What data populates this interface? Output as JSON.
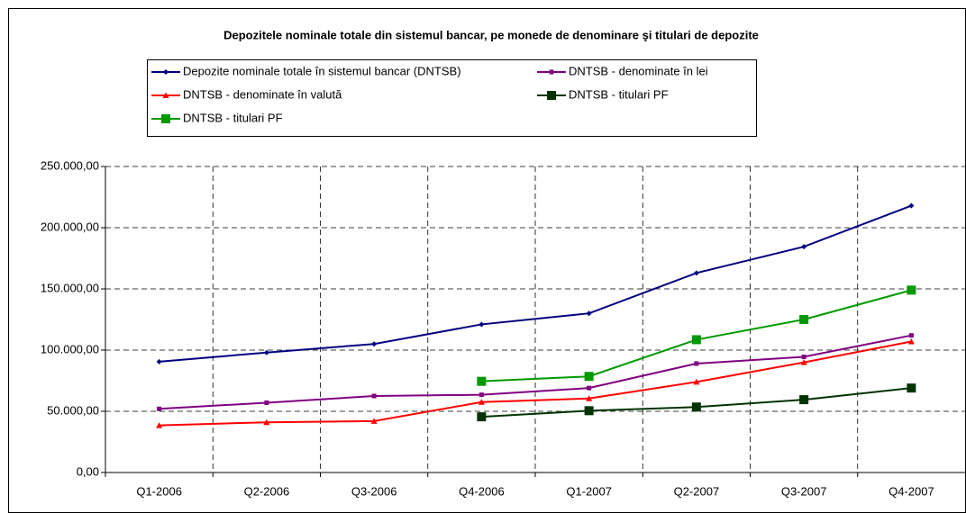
{
  "chart_data": {
    "type": "line",
    "title": "Depozitele nominale totale din sistemul bancar, pe monede de denominare şi titulari de depozite",
    "categories": [
      "Q1-2006",
      "Q2-2006",
      "Q3-2006",
      "Q4-2006",
      "Q1-2007",
      "Q2-2007",
      "Q3-2007",
      "Q4-2007"
    ],
    "series": [
      {
        "name": "Depozite nominale totale în sistemul bancar (DNTSB)",
        "color": "#000080",
        "marker": "diamond",
        "values": [
          90500,
          98000,
          105000,
          121000,
          130000,
          163000,
          184500,
          218000
        ]
      },
      {
        "name": "DNTSB - denominate în lei",
        "color": "#800080",
        "marker": "square",
        "values": [
          52000,
          57000,
          62500,
          63500,
          69000,
          89000,
          94500,
          112000
        ]
      },
      {
        "name": "DNTSB - denominate în valută",
        "color": "#ff0000",
        "marker": "triangle",
        "values": [
          38500,
          41000,
          42000,
          57500,
          60500,
          74000,
          90000,
          107000
        ]
      },
      {
        "name": "DNTSB - titulari PF",
        "color": "#003300",
        "marker": "bigsquare",
        "values": [
          null,
          null,
          null,
          45500,
          50500,
          53500,
          59500,
          69000
        ]
      },
      {
        "name": "DNTSB - titulari PF",
        "color": "#009900",
        "marker": "bigsquare",
        "values": [
          null,
          null,
          null,
          74500,
          78500,
          108500,
          125000,
          149000
        ]
      }
    ],
    "ylim": [
      0,
      250000
    ],
    "yticks": [
      {
        "value": 0,
        "label": "0,00"
      },
      {
        "value": 50000,
        "label": "50.000,00"
      },
      {
        "value": 100000,
        "label": "100.000,00"
      },
      {
        "value": 150000,
        "label": "150.000,00"
      },
      {
        "value": 200000,
        "label": "200.000,00"
      },
      {
        "value": 250000,
        "label": "250.000,00"
      }
    ],
    "grid": true
  }
}
